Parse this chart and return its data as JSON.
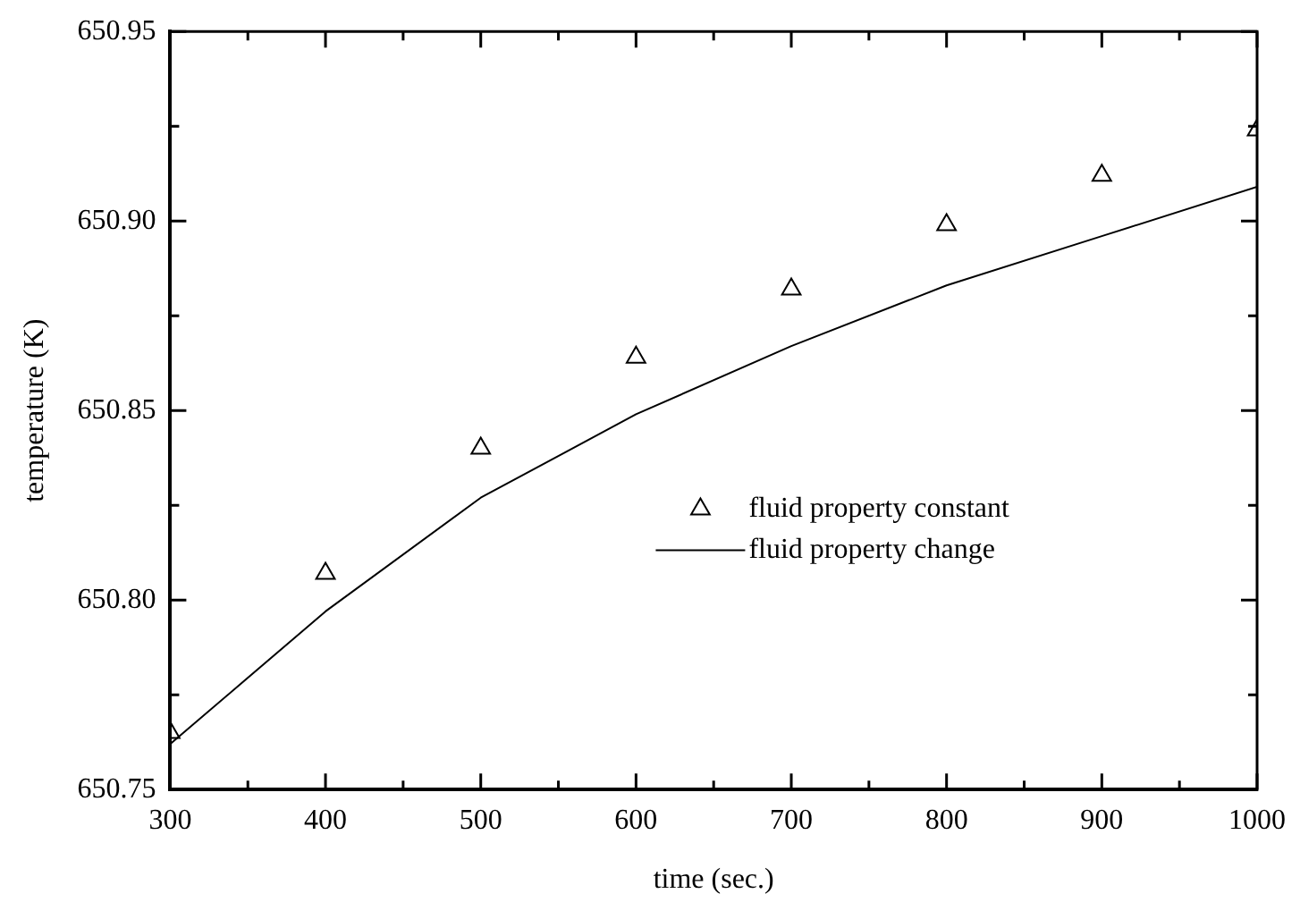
{
  "chart_data": {
    "type": "scatter",
    "xlabel": "time (sec.)",
    "ylabel": "temperature (K)",
    "x": [
      300,
      400,
      500,
      600,
      700,
      800,
      900,
      1000
    ],
    "series": [
      {
        "name": "fluid property constant",
        "color": "#000000",
        "marker": "triangle",
        "values": [
          650.765,
          650.807,
          650.84,
          650.864,
          650.882,
          650.899,
          650.912,
          650.924
        ]
      },
      {
        "name": "fluid property change",
        "type": "line",
        "color": "#000000",
        "marker": "none",
        "line_style": "solid",
        "values": [
          650.762,
          650.797,
          650.827,
          650.849,
          650.867,
          650.883,
          650.896,
          650.909
        ]
      }
    ],
    "xlim": [
      300,
      1000
    ],
    "xticks": [
      300,
      {
        "value": 350,
        "label": null
      },
      400,
      {
        "value": 450,
        "label": null
      },
      500,
      {
        "value": 550,
        "label": null
      },
      600,
      {
        "value": 650,
        "label": null
      },
      700,
      {
        "value": 750,
        "label": null
      },
      800,
      {
        "value": 850,
        "label": null
      },
      900,
      {
        "value": 950,
        "label": null
      },
      1000
    ],
    "ylim": [
      650.75,
      650.95
    ],
    "yticks": [
      {
        "value": 650.75,
        "label": "650.75"
      },
      {
        "value": 650.775,
        "label": null
      },
      {
        "value": 650.8,
        "label": "650.80"
      },
      {
        "value": 650.825,
        "label": null
      },
      {
        "value": 650.85,
        "label": "650.85"
      },
      {
        "value": 650.875,
        "label": null
      },
      {
        "value": 650.9,
        "label": "650.90"
      },
      {
        "value": 650.925,
        "label": null
      },
      {
        "value": 650.95,
        "label": "650.95"
      }
    ],
    "grid": false,
    "legend": "right"
  }
}
